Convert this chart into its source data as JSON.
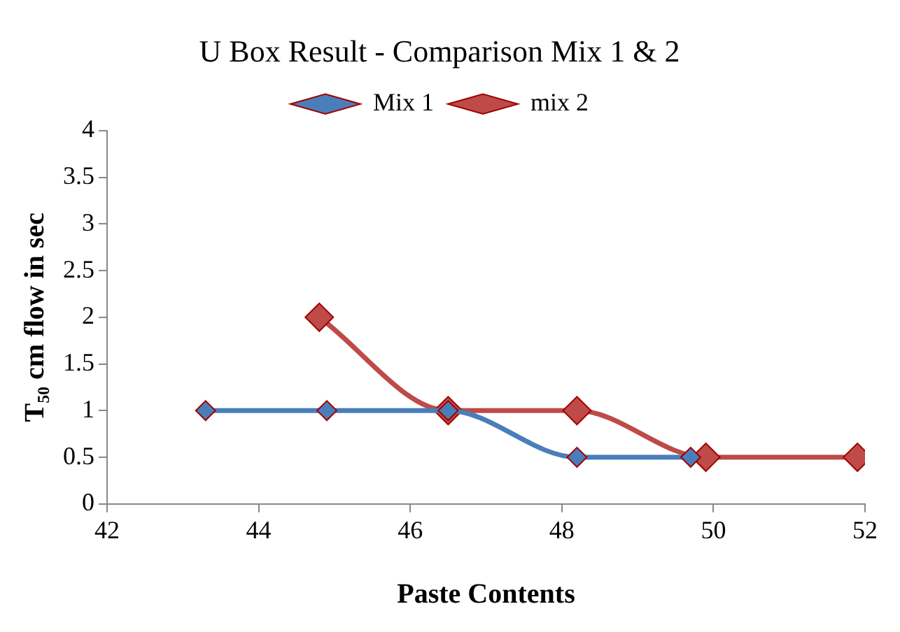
{
  "chart_data": {
    "type": "line",
    "title": "U Box Result - Comparison Mix 1 & 2",
    "xlabel": "Paste Contents",
    "ylabel": "T₅₀ cm flow in sec",
    "xlim": [
      42,
      52
    ],
    "xticks": [
      42,
      44,
      46,
      48,
      50,
      52
    ],
    "ylim": [
      0,
      4
    ],
    "yticks": [
      0,
      0.5,
      1,
      1.5,
      2,
      2.5,
      3,
      3.5,
      4
    ],
    "grid": false,
    "legend": "top",
    "marker": "diamond",
    "line_style": "solid",
    "series": [
      {
        "name": "Mix 1",
        "color": "#4a7ebb",
        "x": [
          43.3,
          44.9,
          46.5,
          48.2,
          49.7
        ],
        "values": [
          1,
          1,
          1,
          0.5,
          0.5
        ]
      },
      {
        "name": "mix 2",
        "color": "#be4b48",
        "x": [
          44.8,
          46.5,
          48.2,
          49.9,
          51.9
        ],
        "values": [
          2,
          1,
          1,
          0.5,
          0.5
        ]
      }
    ]
  }
}
